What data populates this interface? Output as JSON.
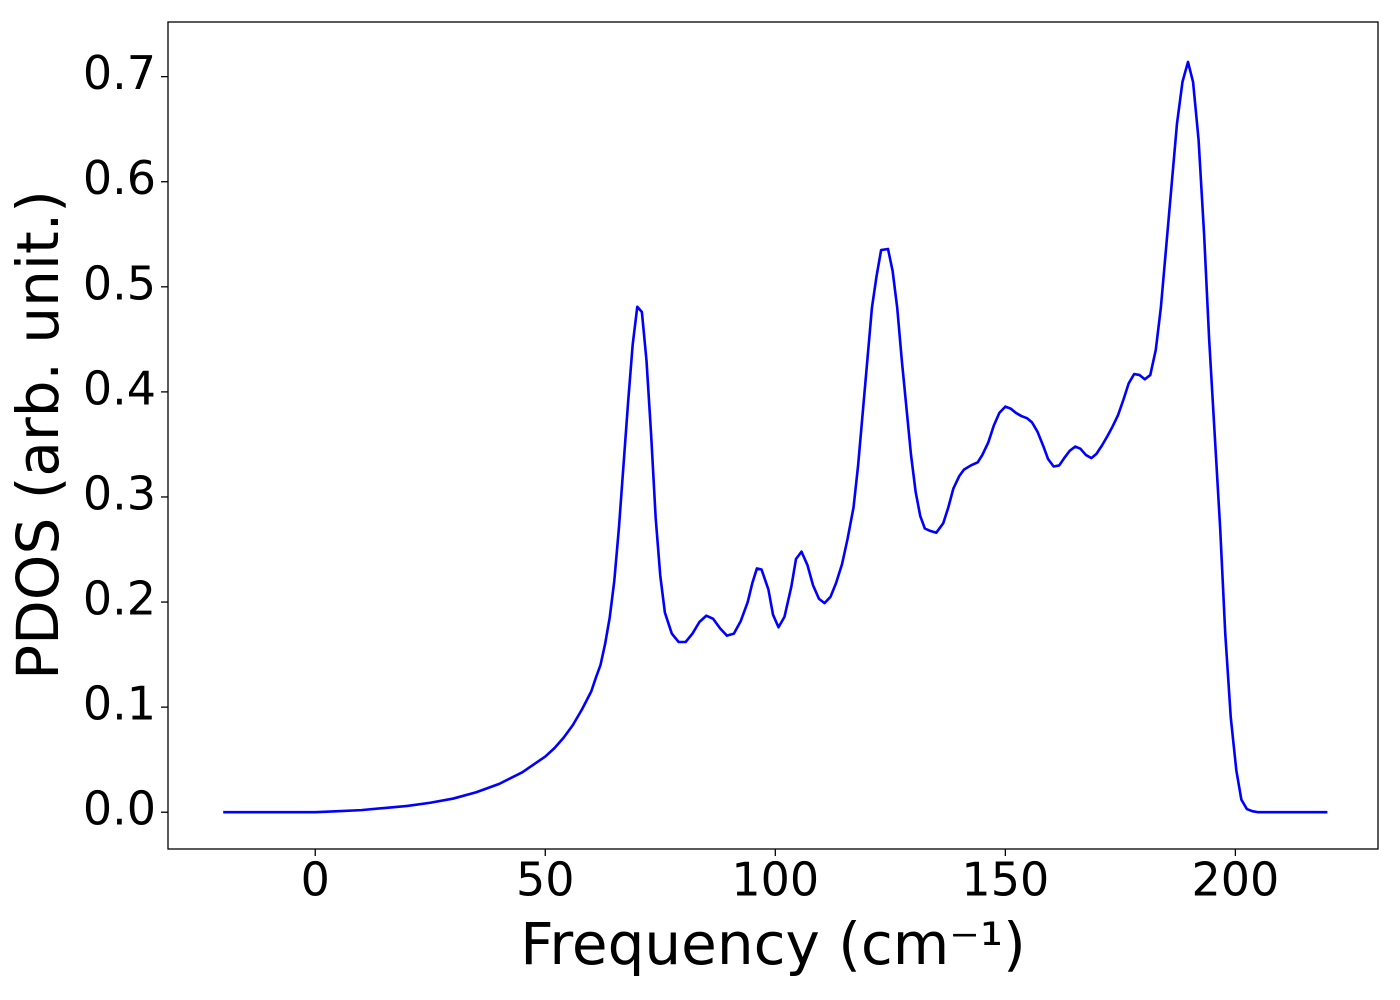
{
  "chart_data": {
    "type": "line",
    "xlabel": "Frequency (cm⁻¹)",
    "ylabel": "PDOS (arb. unit.)",
    "color": "#0000ff",
    "x": [
      -20,
      0,
      5,
      10,
      15,
      20,
      25,
      30,
      35,
      40,
      45,
      50,
      52,
      54,
      56,
      58,
      60,
      61,
      62,
      63,
      64,
      65,
      66,
      67,
      68,
      69,
      70,
      71,
      72,
      73,
      74,
      75,
      76,
      77.5,
      79,
      80.5,
      82,
      83.5,
      85,
      86.5,
      88,
      89.5,
      91,
      92.5,
      94,
      95,
      96,
      97,
      98.5,
      99.5,
      100.7,
      102,
      103.5,
      104.5,
      105.7,
      107,
      108.2,
      109.5,
      110.7,
      112,
      113.2,
      114.5,
      115.7,
      117,
      118,
      119,
      120,
      121,
      122,
      123,
      124.5,
      125.5,
      126.5,
      127.5,
      128.5,
      129.5,
      130.5,
      131.5,
      132.5,
      133.5,
      135,
      136.5,
      137.6,
      138.7,
      140,
      141,
      142.5,
      144,
      145,
      146.3,
      147.5,
      148.7,
      150,
      151.2,
      152.3,
      153.5,
      154.7,
      155.8,
      157,
      158.2,
      159.3,
      160.5,
      161.7,
      162.8,
      164,
      165.2,
      166.3,
      167.5,
      168.7,
      169.8,
      171,
      172.2,
      173.3,
      174.5,
      175.7,
      176.8,
      178,
      179.2,
      180.3,
      181.5,
      182.7,
      183.8,
      185,
      186.2,
      187.3,
      188.5,
      189.7,
      190.8,
      192,
      193.2,
      194.3,
      195.5,
      196.7,
      197.8,
      199,
      200.2,
      201.3,
      202.5,
      203.7,
      205,
      220
    ],
    "values": [
      0,
      0,
      0.001,
      0.002,
      0.004,
      0.006,
      0.009,
      0.013,
      0.019,
      0.027,
      0.038,
      0.053,
      0.061,
      0.071,
      0.083,
      0.098,
      0.115,
      0.128,
      0.14,
      0.16,
      0.185,
      0.22,
      0.27,
      0.33,
      0.39,
      0.445,
      0.481,
      0.476,
      0.43,
      0.36,
      0.28,
      0.225,
      0.19,
      0.17,
      0.162,
      0.162,
      0.17,
      0.181,
      0.187,
      0.184,
      0.175,
      0.168,
      0.17,
      0.182,
      0.2,
      0.218,
      0.232,
      0.231,
      0.212,
      0.188,
      0.176,
      0.186,
      0.215,
      0.241,
      0.248,
      0.235,
      0.216,
      0.203,
      0.199,
      0.205,
      0.218,
      0.236,
      0.26,
      0.29,
      0.33,
      0.38,
      0.43,
      0.48,
      0.51,
      0.535,
      0.536,
      0.515,
      0.48,
      0.43,
      0.385,
      0.34,
      0.305,
      0.282,
      0.27,
      0.268,
      0.266,
      0.275,
      0.29,
      0.308,
      0.32,
      0.326,
      0.33,
      0.333,
      0.34,
      0.352,
      0.368,
      0.38,
      0.386,
      0.384,
      0.38,
      0.377,
      0.375,
      0.371,
      0.362,
      0.349,
      0.336,
      0.329,
      0.33,
      0.337,
      0.344,
      0.348,
      0.346,
      0.34,
      0.337,
      0.341,
      0.349,
      0.358,
      0.367,
      0.378,
      0.393,
      0.408,
      0.417,
      0.416,
      0.412,
      0.416,
      0.44,
      0.48,
      0.54,
      0.6,
      0.655,
      0.695,
      0.714,
      0.695,
      0.64,
      0.55,
      0.45,
      0.36,
      0.27,
      0.17,
      0.09,
      0.04,
      0.012,
      0.003,
      0.001,
      0,
      0
    ],
    "xlim": [
      -32,
      231
    ],
    "ylim": [
      -0.035,
      0.752
    ],
    "xticks": [
      0,
      50,
      100,
      150,
      200
    ],
    "yticks": [
      {
        "value": 0,
        "label": "0.0"
      },
      0.1,
      0.2,
      0.3,
      0.4,
      0.5,
      0.6,
      0.7
    ],
    "grid": false
  }
}
